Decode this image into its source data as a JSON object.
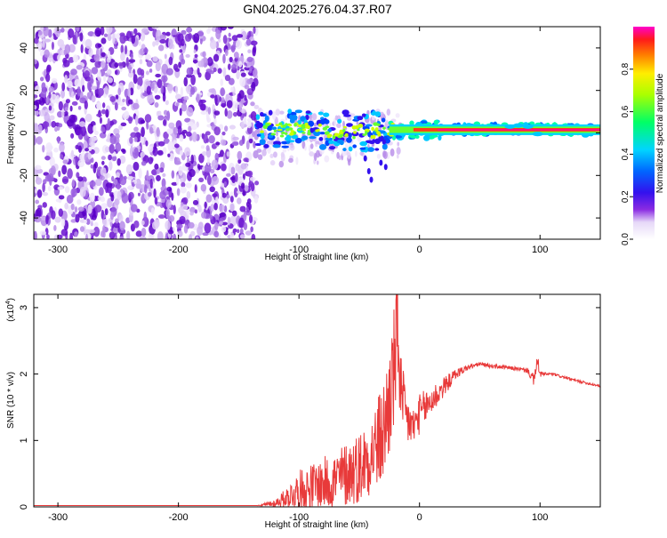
{
  "title": "GN04.2025.276.04.37.R07",
  "chart_data": [
    {
      "type": "heatmap",
      "title": "GN04.2025.276.04.37.R07",
      "xlabel": "Height of straight line (km)",
      "ylabel": "Frequency (Hz)",
      "xlim": [
        -320,
        150
      ],
      "ylim": [
        -50,
        50
      ],
      "xticks": [
        -300,
        -200,
        -100,
        0,
        100
      ],
      "xtick_labels": [
        "-300",
        "-200",
        "-100",
        "0",
        "100"
      ],
      "yticks": [
        -40,
        -20,
        0,
        20,
        40
      ],
      "ytick_labels": [
        "-40",
        "-20",
        "0",
        "20",
        "40"
      ],
      "noise_region_x": [
        -320,
        -135
      ],
      "signal_track": [
        {
          "x": -135,
          "f": 1.5
        },
        {
          "x": -110,
          "f": 1.5
        },
        {
          "x": -80,
          "f": 1.0
        },
        {
          "x": -50,
          "f": 0.5
        },
        {
          "x": -30,
          "f": 1.5
        },
        {
          "x": -10,
          "f": 1.0
        },
        {
          "x": 20,
          "f": 1.5
        },
        {
          "x": 80,
          "f": 2.0
        },
        {
          "x": 150,
          "f": 1.5
        }
      ],
      "colorbar": {
        "label": "Normalized spectral amplitude",
        "range": [
          0,
          1
        ],
        "ticks": [
          0.0,
          0.2,
          0.4,
          0.6,
          0.8
        ],
        "tick_labels": [
          "0.0",
          "0.2",
          "0.4",
          "0.6",
          "0.8"
        ]
      }
    },
    {
      "type": "line",
      "xlabel": "Height of straight line (km)",
      "ylabel": "SNR (10 * v/v)",
      "y_multiplier": "(x10",
      "y_multiplier_exp": "4",
      "y_multiplier_close": ")",
      "xlim": [
        -320,
        150
      ],
      "ylim": [
        0,
        3.2
      ],
      "xticks": [
        -300,
        -200,
        -100,
        0,
        100
      ],
      "xtick_labels": [
        "-300",
        "-200",
        "-100",
        "0",
        "100"
      ],
      "yticks": [
        0,
        1,
        2,
        3
      ],
      "ytick_labels": [
        "0",
        "1",
        "2",
        "3"
      ],
      "color": "#e83a3a",
      "series": [
        {
          "name": "SNR",
          "x": [
            -320,
            -135,
            -120,
            -110,
            -100,
            -90,
            -80,
            -70,
            -60,
            -50,
            -40,
            -30,
            -25,
            -20,
            -18,
            -15,
            -10,
            -5,
            0,
            10,
            20,
            30,
            40,
            50,
            60,
            70,
            80,
            90,
            95,
            98,
            100,
            105,
            110,
            120,
            130,
            140,
            150
          ],
          "y": [
            0.02,
            0.02,
            0.05,
            0.15,
            0.25,
            0.3,
            0.35,
            0.4,
            0.5,
            0.6,
            0.8,
            1.1,
            1.6,
            2.2,
            2.8,
            1.5,
            1.3,
            1.2,
            1.4,
            1.6,
            1.8,
            2.0,
            2.1,
            2.15,
            2.12,
            2.1,
            2.08,
            2.05,
            1.9,
            2.2,
            2.0,
            2.0,
            2.0,
            1.95,
            1.9,
            1.86,
            1.82
          ],
          "noise_amplitude": [
            0,
            0,
            0.06,
            0.15,
            0.3,
            0.35,
            0.4,
            0.45,
            0.5,
            0.55,
            0.6,
            0.8,
            0.9,
            1.0,
            1.0,
            0.7,
            0.4,
            0.3,
            0.3,
            0.25,
            0.15,
            0.08,
            0.04,
            0.03,
            0.03,
            0.03,
            0.03,
            0.04,
            0.1,
            0.1,
            0.05,
            0.02,
            0.02,
            0.02,
            0.02,
            0.02,
            0.02
          ]
        }
      ]
    }
  ]
}
